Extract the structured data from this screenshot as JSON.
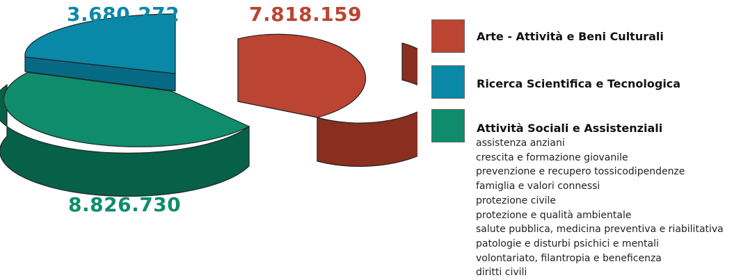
{
  "chart_data": {
    "type": "pie",
    "style": "3d-exploded",
    "slices": [
      {
        "name": "Arte - Attività e Beni Culturali",
        "value": 7818159,
        "label": "7.818.159",
        "color": "#bb4433",
        "side_color": "#8a2e20"
      },
      {
        "name": "Ricerca Scientifica e Tecnologica",
        "value": 3680272,
        "label": "3.680.272",
        "color": "#0a88a8",
        "side_color": "#066a85"
      },
      {
        "name": "Attività Sociali e Assistenziali",
        "value": 8826730,
        "label": "8.826.730",
        "color": "#0e8c6c",
        "side_color": "#076048"
      }
    ],
    "legend_position": "right",
    "sub_items_of": "Attività Sociali e Assistenziali",
    "sub_items": [
      "assistenza anziani",
      "crescita e formazione giovanile",
      "prevenzione e recupero tossicodipendenze",
      "famiglia e valori connessi",
      "protezione civile",
      "protezione e qualità ambientale",
      "salute pubblica, medicina preventiva e riabilitativa",
      "patologie e disturbi psichici e mentali",
      "volontariato, filantropia e beneficenza",
      "diritti civili"
    ]
  }
}
